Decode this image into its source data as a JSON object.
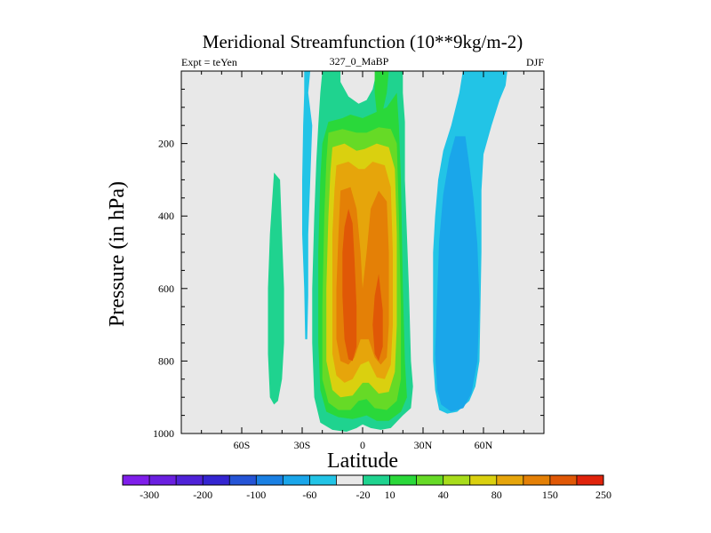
{
  "chart_data": {
    "type": "heatmap",
    "title": "Meridional Streamfunction (10**9kg/m-2)",
    "left_label": "Expt = teYen",
    "center_label": "327_0_MaBP",
    "right_label": "DJF",
    "xlabel": "Latitude",
    "ylabel": "Pressure (in hPa)",
    "xlim": [
      -90,
      90
    ],
    "ylim": [
      1000,
      0
    ],
    "x_ticks": [
      {
        "value": -60,
        "label": "60S"
      },
      {
        "value": -30,
        "label": "30S"
      },
      {
        "value": 0,
        "label": "0"
      },
      {
        "value": 30,
        "label": "30N"
      },
      {
        "value": 60,
        "label": "60N"
      }
    ],
    "y_ticks": [
      {
        "value": 200,
        "label": "200"
      },
      {
        "value": 400,
        "label": "400"
      },
      {
        "value": 600,
        "label": "600"
      },
      {
        "value": 800,
        "label": "800"
      },
      {
        "value": 1000,
        "label": "1000"
      }
    ],
    "colorbar": {
      "colors": [
        "#7f1eea",
        "#6a1fe0",
        "#4f22d8",
        "#3425d1",
        "#2554d6",
        "#1a80e3",
        "#1aa6ea",
        "#22c4e6",
        "#e8e8e8",
        "#1fd38f",
        "#2ad83a",
        "#66da26",
        "#a8dc1b",
        "#dad00f",
        "#e6a50b",
        "#e48006",
        "#e05806",
        "#e0230b"
      ],
      "labels": [
        {
          "value": "-300",
          "after_index": 0
        },
        {
          "value": "-200",
          "after_index": 2
        },
        {
          "value": "-100",
          "after_index": 4
        },
        {
          "value": "-60",
          "after_index": 6
        },
        {
          "value": "-20",
          "after_index": 8
        },
        {
          "value": "10",
          "after_index": 9
        },
        {
          "value": "40",
          "after_index": 11
        },
        {
          "value": "80",
          "after_index": 13
        },
        {
          "value": "150",
          "after_index": 15
        },
        {
          "value": "250",
          "after_index": 17
        }
      ]
    },
    "regions": [
      {
        "level": "-20",
        "color": "#22c4e6",
        "description": "SH upper-level negative band",
        "points": [
          [
            -29,
            0
          ],
          [
            -26,
            0
          ],
          [
            -27,
            60
          ],
          [
            -25,
            150
          ],
          [
            -26,
            300
          ],
          [
            -27,
            450
          ],
          [
            -27,
            620
          ],
          [
            -27.5,
            740
          ],
          [
            -28.5,
            740
          ],
          [
            -29,
            600
          ],
          [
            -30,
            450
          ],
          [
            -30,
            300
          ],
          [
            -29.5,
            150
          ],
          [
            -29,
            60
          ]
        ]
      },
      {
        "level": "-20",
        "color": "#22c4e6",
        "description": "NH negative cell",
        "points": [
          [
            50,
            -8
          ],
          [
            72,
            -8
          ],
          [
            71,
            40
          ],
          [
            68,
            80
          ],
          [
            64,
            150
          ],
          [
            60,
            230
          ],
          [
            59,
            330
          ],
          [
            59,
            500
          ],
          [
            58.5,
            650
          ],
          [
            58,
            800
          ],
          [
            56,
            870
          ],
          [
            53,
            910
          ],
          [
            47,
            940
          ],
          [
            42,
            945
          ],
          [
            38,
            935
          ],
          [
            36,
            880
          ],
          [
            35,
            800
          ],
          [
            35,
            620
          ],
          [
            35,
            500
          ],
          [
            36,
            400
          ],
          [
            37.5,
            300
          ],
          [
            40,
            220
          ],
          [
            44,
            150
          ],
          [
            48,
            60
          ]
        ]
      },
      {
        "level": "-60",
        "color": "#1aa6ea",
        "description": "NH negative core",
        "points": [
          [
            46,
            180
          ],
          [
            51,
            180
          ],
          [
            53,
            260
          ],
          [
            55,
            350
          ],
          [
            57,
            480
          ],
          [
            58,
            640
          ],
          [
            57,
            800
          ],
          [
            54,
            890
          ],
          [
            50,
            930
          ],
          [
            44,
            940
          ],
          [
            39,
            920
          ],
          [
            37,
            880
          ],
          [
            36,
            780
          ],
          [
            37,
            620
          ],
          [
            38,
            470
          ],
          [
            40,
            340
          ],
          [
            43,
            240
          ]
        ]
      },
      {
        "level": "10",
        "color": "#1fd38f",
        "description": "SH lower positive cell",
        "points": [
          [
            -44,
            280
          ],
          [
            -41,
            300
          ],
          [
            -40,
            450
          ],
          [
            -39,
            600
          ],
          [
            -39,
            750
          ],
          [
            -40,
            850
          ],
          [
            -42,
            910
          ],
          [
            -44,
            920
          ],
          [
            -46,
            900
          ],
          [
            -47,
            780
          ],
          [
            -47,
            600
          ],
          [
            -46,
            450
          ]
        ]
      },
      {
        "level": "10",
        "color": "#1fd38f",
        "description": "Hadley cell outer contour",
        "points": [
          [
            -20,
            0
          ],
          [
            -11,
            0
          ],
          [
            -11,
            30
          ],
          [
            -7,
            70
          ],
          [
            -2,
            90
          ],
          [
            2,
            80
          ],
          [
            5,
            50
          ],
          [
            7,
            0
          ],
          [
            20,
            0
          ],
          [
            20,
            60
          ],
          [
            21,
            140
          ],
          [
            21,
            300
          ],
          [
            23,
            600
          ],
          [
            24,
            800
          ],
          [
            25,
            870
          ],
          [
            24,
            930
          ],
          [
            20,
            950
          ],
          [
            14,
            985
          ],
          [
            9,
            990
          ],
          [
            4,
            985
          ],
          [
            0,
            975
          ],
          [
            -3,
            985
          ],
          [
            -8,
            995
          ],
          [
            -15,
            990
          ],
          [
            -21,
            970
          ],
          [
            -24,
            900
          ],
          [
            -25,
            750
          ],
          [
            -25,
            600
          ],
          [
            -24,
            400
          ],
          [
            -23,
            250
          ],
          [
            -22,
            150
          ],
          [
            -21,
            60
          ]
        ]
      },
      {
        "level": "40",
        "color": "#2ad83a",
        "description": "Hadley cell",
        "points": [
          [
            -17,
            140
          ],
          [
            -10,
            130
          ],
          [
            -6,
            120
          ],
          [
            0,
            130
          ],
          [
            6,
            115
          ],
          [
            12,
            100
          ],
          [
            17,
            60
          ],
          [
            18,
            150
          ],
          [
            19,
            300
          ],
          [
            20,
            600
          ],
          [
            21,
            800
          ],
          [
            22,
            900
          ],
          [
            19,
            940
          ],
          [
            13,
            965
          ],
          [
            7,
            965
          ],
          [
            2,
            950
          ],
          [
            -1,
            955
          ],
          [
            -5,
            960
          ],
          [
            -12,
            955
          ],
          [
            -18,
            940
          ],
          [
            -21,
            880
          ],
          [
            -22,
            750
          ],
          [
            -22,
            500
          ],
          [
            -21,
            300
          ],
          [
            -20,
            200
          ]
        ]
      },
      {
        "level": "40",
        "color": "#2ad83a",
        "description": "upper-level NH positive finger",
        "points": [
          [
            6,
            0
          ],
          [
            13,
            0
          ],
          [
            12,
            60
          ],
          [
            10,
            110
          ],
          [
            7,
            115
          ],
          [
            6,
            60
          ]
        ]
      },
      {
        "level": "80",
        "color": "#66da26",
        "description": "Hadley cell",
        "points": [
          [
            -17,
            170
          ],
          [
            -10,
            160
          ],
          [
            -3,
            170
          ],
          [
            2,
            170
          ],
          [
            8,
            155
          ],
          [
            14,
            160
          ],
          [
            17,
            200
          ],
          [
            18,
            400
          ],
          [
            19,
            650
          ],
          [
            19,
            850
          ],
          [
            17,
            910
          ],
          [
            12,
            935
          ],
          [
            6,
            930
          ],
          [
            2,
            905
          ],
          [
            -2,
            910
          ],
          [
            -6,
            935
          ],
          [
            -12,
            935
          ],
          [
            -17,
            915
          ],
          [
            -20,
            850
          ],
          [
            -20,
            650
          ],
          [
            -19,
            400
          ],
          [
            -18,
            250
          ]
        ]
      },
      {
        "level": "150",
        "color": "#dad00f",
        "description": "Hadley cell",
        "points": [
          [
            -15,
            210
          ],
          [
            -9,
            200
          ],
          [
            -3,
            220
          ],
          [
            1,
            215
          ],
          [
            7,
            200
          ],
          [
            13,
            210
          ],
          [
            16,
            270
          ],
          [
            17,
            450
          ],
          [
            17,
            700
          ],
          [
            16,
            830
          ],
          [
            13,
            885
          ],
          [
            8,
            890
          ],
          [
            3,
            860
          ],
          [
            0,
            860
          ],
          [
            -5,
            895
          ],
          [
            -11,
            900
          ],
          [
            -15,
            880
          ],
          [
            -18,
            800
          ],
          [
            -18,
            600
          ],
          [
            -17,
            400
          ],
          [
            -16,
            280
          ]
        ]
      },
      {
        "level": "200",
        "color": "#e6a50b",
        "description": "Hadley cell",
        "points": [
          [
            -13,
            260
          ],
          [
            -7,
            250
          ],
          [
            -2,
            270
          ],
          [
            1,
            270
          ],
          [
            5,
            250
          ],
          [
            11,
            260
          ],
          [
            14,
            320
          ],
          [
            15,
            500
          ],
          [
            15,
            700
          ],
          [
            14,
            810
          ],
          [
            11,
            850
          ],
          [
            7,
            845
          ],
          [
            3,
            800
          ],
          [
            -1,
            810
          ],
          [
            -5,
            850
          ],
          [
            -9,
            860
          ],
          [
            -13,
            840
          ],
          [
            -15,
            780
          ],
          [
            -15,
            600
          ],
          [
            -15,
            450
          ],
          [
            -14,
            330
          ]
        ]
      },
      {
        "level": "250",
        "color": "#e48006",
        "description": "Hadley cell",
        "points": [
          [
            -11,
            330
          ],
          [
            -6,
            320
          ],
          [
            -3,
            380
          ],
          [
            -1,
            500
          ],
          [
            0,
            600
          ],
          [
            2,
            500
          ],
          [
            4,
            380
          ],
          [
            8,
            330
          ],
          [
            12,
            360
          ],
          [
            13,
            500
          ],
          [
            13,
            700
          ],
          [
            12,
            790
          ],
          [
            9,
            810
          ],
          [
            6,
            790
          ],
          [
            3,
            740
          ],
          [
            -1,
            740
          ],
          [
            -4,
            790
          ],
          [
            -7,
            810
          ],
          [
            -11,
            800
          ],
          [
            -13,
            740
          ],
          [
            -13,
            600
          ],
          [
            -12,
            450
          ]
        ]
      },
      {
        "level": "300",
        "color": "#e05806",
        "description": "SH core",
        "points": [
          [
            -7,
            380
          ],
          [
            -5,
            420
          ],
          [
            -4,
            520
          ],
          [
            -3,
            650
          ],
          [
            -3,
            760
          ],
          [
            -5,
            800
          ],
          [
            -7,
            795
          ],
          [
            -9,
            740
          ],
          [
            -10,
            620
          ],
          [
            -10,
            500
          ],
          [
            -9,
            430
          ]
        ]
      },
      {
        "level": "300",
        "color": "#e05806",
        "description": "NH core",
        "points": [
          [
            8,
            560
          ],
          [
            10,
            660
          ],
          [
            10,
            760
          ],
          [
            8,
            800
          ],
          [
            6,
            780
          ],
          [
            5,
            700
          ],
          [
            6,
            620
          ]
        ]
      }
    ]
  }
}
